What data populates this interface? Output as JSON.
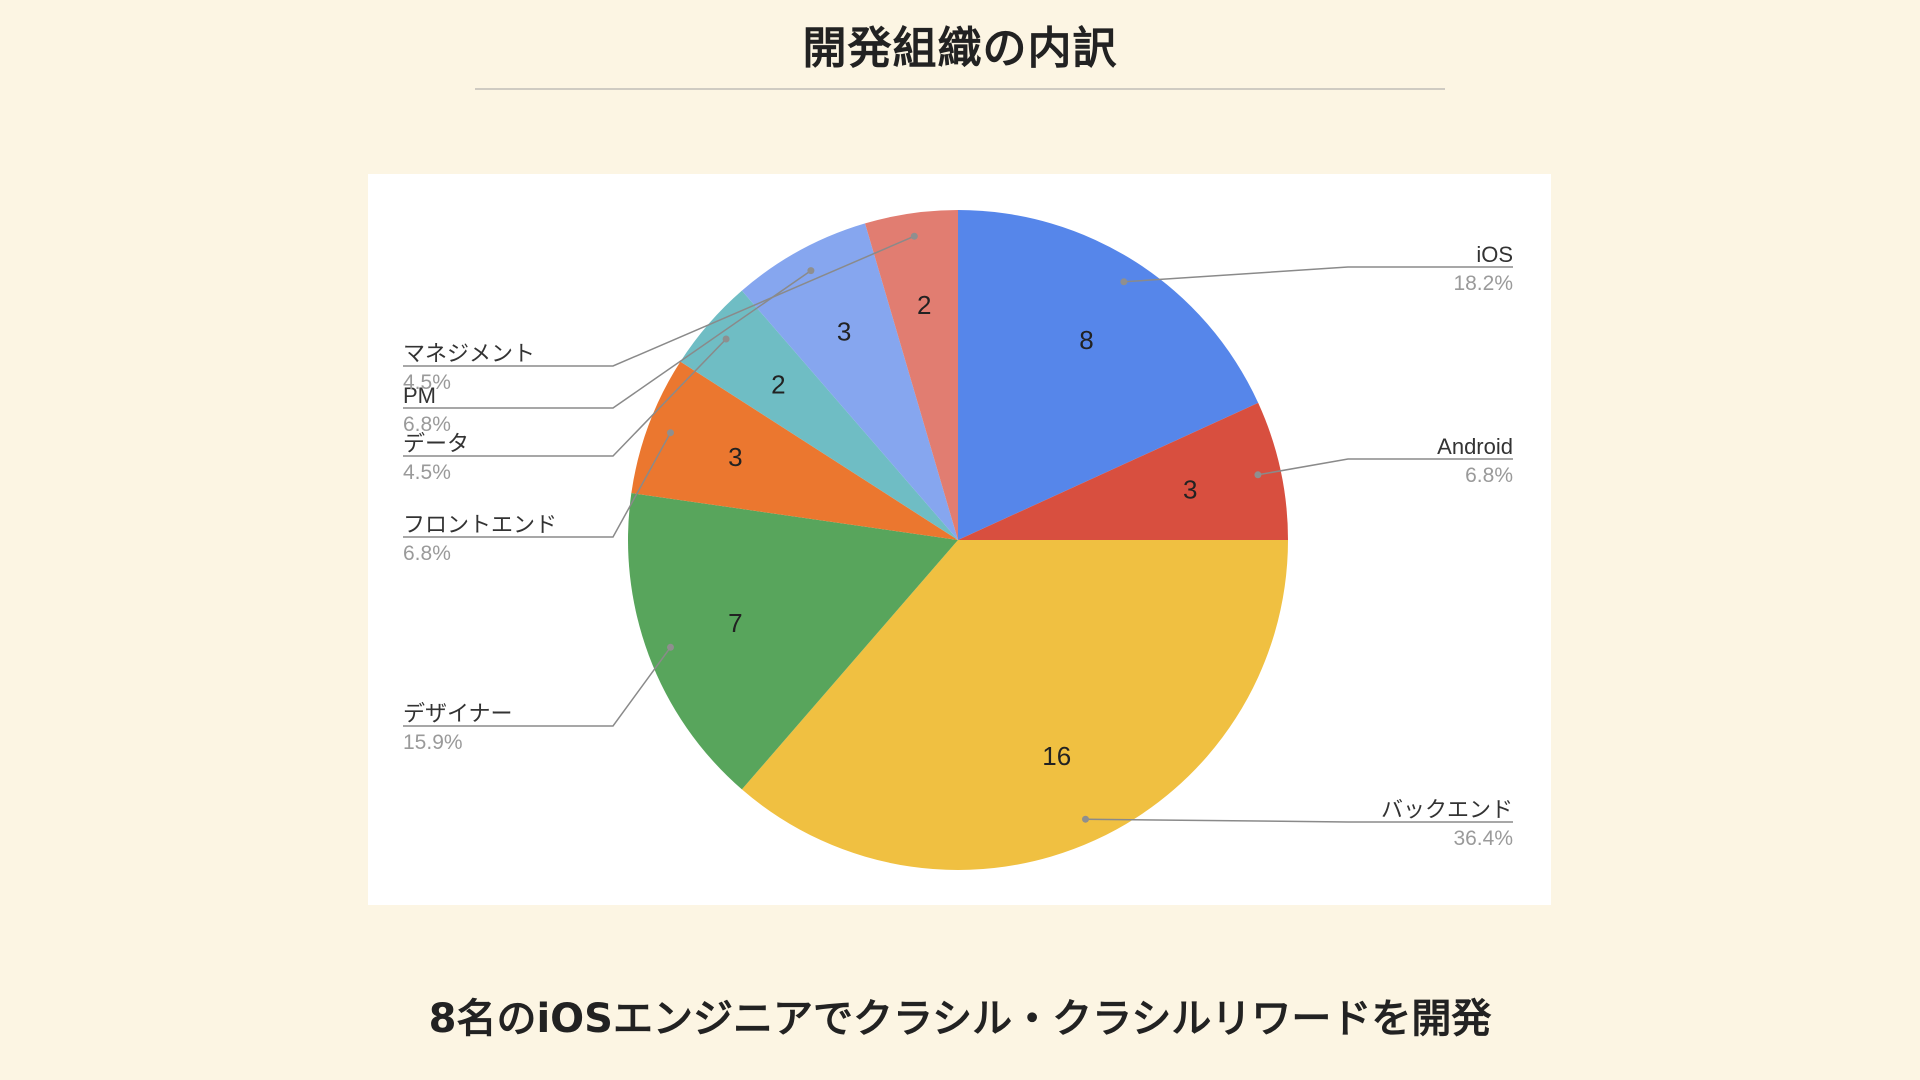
{
  "slide": {
    "title": "開発組織の内訳",
    "caption": "8名のiOSエンジニアでクラシル・クラシルリワードを開発"
  },
  "chart_data": {
    "type": "pie",
    "start_angle_deg": 0,
    "direction": "clockwise",
    "slices": [
      {
        "label": "iOS",
        "value": 8,
        "percent": "18.2%",
        "color": "#5686ea",
        "label_side": "right"
      },
      {
        "label": "Android",
        "value": 3,
        "percent": "6.8%",
        "color": "#d84f3f",
        "label_side": "right"
      },
      {
        "label": "バックエンド",
        "value": 16,
        "percent": "36.4%",
        "color": "#f0c041",
        "label_side": "right"
      },
      {
        "label": "デザイナー",
        "value": 7,
        "percent": "15.9%",
        "color": "#58a55c",
        "label_side": "left"
      },
      {
        "label": "フロントエンド",
        "value": 3,
        "percent": "6.8%",
        "color": "#eb772f",
        "label_side": "left"
      },
      {
        "label": "データ",
        "value": 2,
        "percent": "4.5%",
        "color": "#6fbdc4",
        "label_side": "left"
      },
      {
        "label": "PM",
        "value": 3,
        "percent": "6.8%",
        "color": "#86a6ef",
        "label_side": "left"
      },
      {
        "label": "マネジメント",
        "value": 2,
        "percent": "4.5%",
        "color": "#e17d71",
        "label_side": "left"
      }
    ]
  }
}
